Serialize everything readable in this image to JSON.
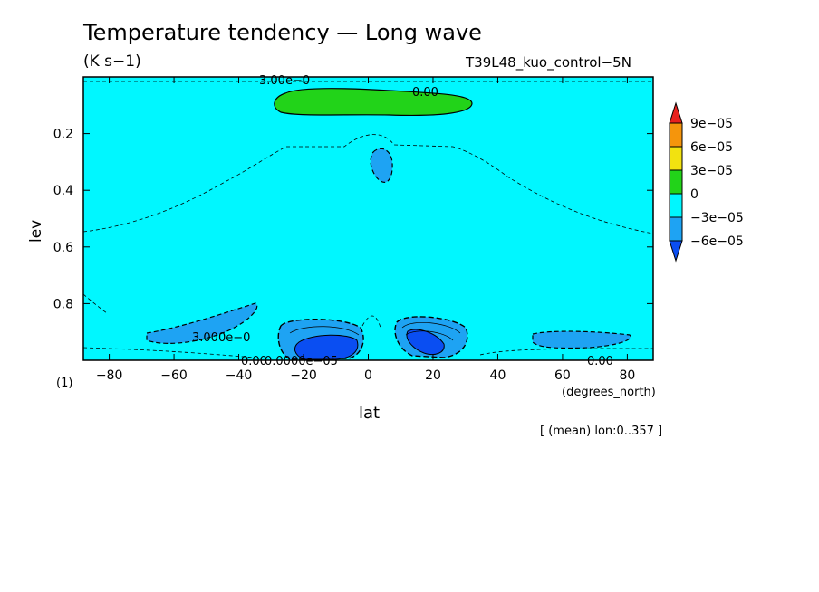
{
  "chart_data": {
    "type": "contour",
    "title": "Temperature tendency — Long wave",
    "units": "(K s−1)",
    "run_label": "T39L48_kuo_control−5N",
    "xlabel": "lat",
    "ylabel": "lev",
    "x_units": "(degrees_north)",
    "y_units": "(1)",
    "footer": "[ (mean) lon:0..357 ]",
    "xlim": [
      -88,
      88
    ],
    "ylim": [
      1.0,
      0.0
    ],
    "x_ticks": [
      -80,
      -60,
      -40,
      -20,
      0,
      20,
      40,
      60,
      80
    ],
    "x_tick_labels": [
      "−80",
      "−60",
      "−40",
      "−20",
      "0",
      "20",
      "40",
      "60",
      "80"
    ],
    "y_ticks": [
      0.2,
      0.4,
      0.6,
      0.8
    ],
    "y_tick_labels": [
      "0.2",
      "0.4",
      "0.6",
      "0.8"
    ],
    "colorbar": {
      "levels": [
        "9e−05",
        "6e−05",
        "3e−05",
        "0",
        "−3e−05",
        "−6e−05"
      ],
      "colors": [
        "#e8211e",
        "#f5950c",
        "#f2e210",
        "#22d319",
        "#00f7ff",
        "#1ea3f3",
        "#0a4ef2"
      ]
    },
    "contour_labels": [
      "3.00e−0",
      "0.00",
      "3.000e−0",
      "0.00",
      "0.0000e−05",
      "0.00"
    ],
    "features": [
      {
        "kind": "positive",
        "level": "0 to 3e−05",
        "lat": [
          -28,
          32
        ],
        "lev": [
          0.04,
          0.13
        ]
      },
      {
        "kind": "negative",
        "level": "−3e−05 to −6e−05",
        "lat": [
          0,
          8
        ],
        "lev": [
          0.26,
          0.37
        ]
      },
      {
        "kind": "negative",
        "level": "−3e−05 to −6e−05",
        "lat": [
          -68,
          -33
        ],
        "lev": [
          0.8,
          0.93
        ]
      },
      {
        "kind": "negative",
        "level": "below −6e−05",
        "lat": [
          -28,
          -3
        ],
        "lev": [
          0.85,
          0.99
        ]
      },
      {
        "kind": "negative",
        "level": "below −6e−05",
        "lat": [
          9,
          31
        ],
        "lev": [
          0.85,
          0.98
        ]
      },
      {
        "kind": "negative",
        "level": "−3e−05 to −6e−05",
        "lat": [
          50,
          80
        ],
        "lev": [
          0.88,
          0.93
        ]
      }
    ]
  }
}
